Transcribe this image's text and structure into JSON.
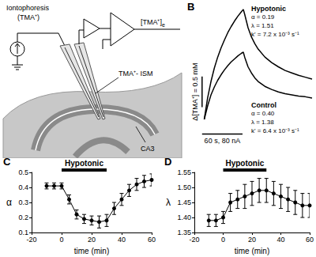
{
  "diagram": {
    "labels": {
      "source": "Iontophoresis",
      "source_ion": "(TMA⁺)",
      "signal": "[TMA⁺]",
      "signal_subscript": "e",
      "electrode": "TMA⁺- ISM",
      "region": "CA3"
    }
  },
  "chart_data": [
    {
      "title": "B",
      "type": "line",
      "tick_labels": false,
      "grid": false,
      "xlim": [
        -10,
        160
      ],
      "ylim": [
        -0.35,
        1.85
      ],
      "x": [
        0,
        5,
        10,
        15,
        20,
        25,
        30,
        35,
        40,
        45,
        50,
        55,
        58,
        60,
        65,
        70,
        75,
        80,
        90,
        100,
        110,
        120,
        130,
        140,
        150,
        160
      ],
      "series": [
        {
          "color": "#000000",
          "values": [
            0,
            0.35,
            0.62,
            0.84,
            1.02,
            1.17,
            1.3,
            1.42,
            1.52,
            1.61,
            1.69,
            1.76,
            1.8,
            1.72,
            1.5,
            1.35,
            1.24,
            1.15,
            1.02,
            0.93,
            0.86,
            0.8,
            0.76,
            0.72,
            0.69,
            0.66
          ]
        },
        {
          "color": "#000000",
          "values": [
            0,
            0.22,
            0.4,
            0.53,
            0.64,
            0.73,
            0.81,
            0.88,
            0.94,
            0.99,
            1.04,
            1.08,
            1.1,
            1.02,
            0.86,
            0.76,
            0.68,
            0.62,
            0.54,
            0.49,
            0.45,
            0.42,
            0.4,
            0.38,
            0.37,
            0.35
          ]
        }
      ],
      "scale_bars": [
        {
          "axis": "y",
          "length": 0.5,
          "label": "Δ[TMA⁺] = 0.5 mM"
        },
        {
          "axis": "x",
          "length": 60,
          "label": "60 s, 80 nA"
        }
      ],
      "annotations": [
        {
          "lines": [
            "Hypotonic",
            "α = 0.19",
            "λ = 1.51",
            "k' = 7.2 x 10⁻³ s⁻¹"
          ]
        },
        {
          "lines": [
            "Control",
            "α = 0.40",
            "λ = 1.38",
            "k' = 6.4 x 10⁻³ s⁻¹"
          ]
        }
      ]
    },
    {
      "title": "C",
      "type": "line",
      "marker": "circle",
      "color": "#000000",
      "grid": false,
      "x_label": "time (min)",
      "y_label": "α",
      "x": [
        -10,
        -5,
        0,
        5,
        10,
        15,
        20,
        25,
        30,
        35,
        40,
        45,
        50,
        55,
        60
      ],
      "values": [
        0.41,
        0.41,
        0.41,
        0.32,
        0.22,
        0.19,
        0.18,
        0.17,
        0.18,
        0.26,
        0.32,
        0.38,
        0.42,
        0.44,
        0.45
      ],
      "errors": [
        0.02,
        0.02,
        0.02,
        0.03,
        0.03,
        0.03,
        0.03,
        0.04,
        0.04,
        0.04,
        0.04,
        0.04,
        0.04,
        0.04,
        0.04
      ],
      "xlim": [
        -20,
        60
      ],
      "xticks": [
        -20,
        0,
        20,
        40,
        60
      ],
      "ylim": [
        0.1,
        0.5
      ],
      "yticks": [
        0.1,
        0.2,
        0.3,
        0.4,
        0.5
      ],
      "annotations": [
        {
          "text": "Hypotonic",
          "x_start": 0,
          "x_end": 30
        }
      ]
    },
    {
      "title": "D",
      "type": "line",
      "marker": "circle",
      "color": "#000000",
      "grid": false,
      "x_label": "time (min)",
      "y_label": "λ",
      "x": [
        -10,
        -5,
        0,
        5,
        10,
        15,
        20,
        25,
        30,
        35,
        40,
        45,
        50,
        55,
        60
      ],
      "values": [
        1.39,
        1.39,
        1.4,
        1.45,
        1.46,
        1.47,
        1.48,
        1.49,
        1.49,
        1.48,
        1.47,
        1.46,
        1.45,
        1.44,
        1.44
      ],
      "errors": [
        0.02,
        0.02,
        0.02,
        0.03,
        0.03,
        0.04,
        0.04,
        0.04,
        0.04,
        0.04,
        0.04,
        0.04,
        0.04,
        0.04,
        0.04
      ],
      "xlim": [
        -20,
        60
      ],
      "xticks": [
        -20,
        0,
        20,
        40,
        60
      ],
      "ylim": [
        1.35,
        1.55
      ],
      "yticks": [
        1.35,
        {
          "value": 1.4,
          "label": "1.40"
        },
        1.45,
        {
          "value": 1.5,
          "label": "1.50"
        },
        1.55
      ],
      "annotations": [
        {
          "text": "Hypotonic",
          "x_start": 0,
          "x_end": 30
        }
      ]
    }
  ]
}
